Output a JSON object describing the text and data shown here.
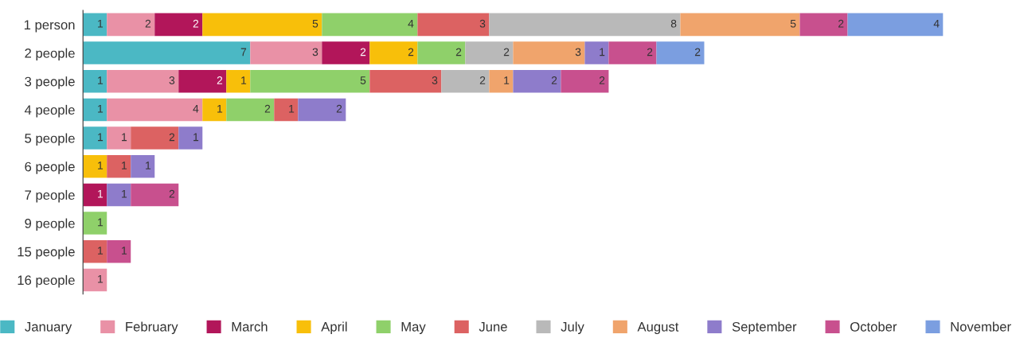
{
  "chart_data": {
    "type": "bar",
    "orientation": "horizontal",
    "stacked": true,
    "data_labels": true,
    "legend": "bottom",
    "grid": false,
    "tick_labels": "y",
    "categories": [
      "1 person",
      "2 people",
      "3 people",
      "4 people",
      "5 people",
      "6 people",
      "7 people",
      "9 people",
      "15 people",
      "16 people"
    ],
    "series": [
      {
        "name": "January",
        "color": "#4bb8c4",
        "values": [
          1,
          7,
          1,
          1,
          1,
          null,
          null,
          null,
          null,
          null
        ]
      },
      {
        "name": "February",
        "color": "#e991a6",
        "values": [
          2,
          3,
          3,
          4,
          1,
          null,
          null,
          null,
          null,
          1
        ]
      },
      {
        "name": "March",
        "color": "#b2165a",
        "values": [
          2,
          2,
          2,
          null,
          null,
          null,
          1,
          null,
          null,
          null
        ]
      },
      {
        "name": "April",
        "color": "#f8bf0a",
        "values": [
          5,
          2,
          1,
          1,
          null,
          1,
          null,
          null,
          null,
          null
        ]
      },
      {
        "name": "May",
        "color": "#8fd06a",
        "values": [
          4,
          2,
          5,
          2,
          null,
          null,
          null,
          1,
          null,
          null
        ]
      },
      {
        "name": "June",
        "color": "#dc6262",
        "values": [
          3,
          null,
          3,
          1,
          2,
          1,
          null,
          null,
          1,
          null
        ]
      },
      {
        "name": "July",
        "color": "#b9b9b9",
        "values": [
          8,
          2,
          2,
          null,
          null,
          null,
          null,
          null,
          null,
          null
        ]
      },
      {
        "name": "August",
        "color": "#f0a46c",
        "values": [
          5,
          3,
          1,
          null,
          null,
          null,
          null,
          null,
          null,
          null
        ]
      },
      {
        "name": "September",
        "color": "#8e7ccb",
        "values": [
          null,
          1,
          2,
          2,
          1,
          1,
          1,
          null,
          null,
          null
        ]
      },
      {
        "name": "October",
        "color": "#c8508e",
        "values": [
          2,
          2,
          2,
          null,
          null,
          null,
          2,
          null,
          1,
          null
        ]
      },
      {
        "name": "November",
        "color": "#7b9ee0",
        "values": [
          4,
          2,
          null,
          null,
          null,
          null,
          null,
          null,
          null,
          null
        ]
      }
    ]
  }
}
